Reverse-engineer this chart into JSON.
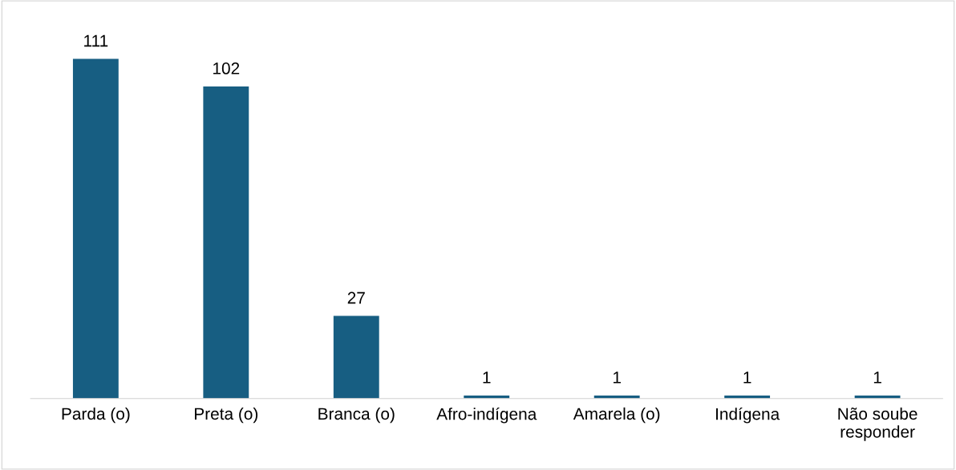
{
  "chart_data": {
    "type": "bar",
    "categories": [
      "Parda (o)",
      "Preta (o)",
      "Branca (o)",
      "Afro-indígena",
      "Amarela (o)",
      "Indígena",
      "Não soube\nresponder"
    ],
    "values": [
      111,
      102,
      27,
      1,
      1,
      1,
      1
    ],
    "color": "#175e82",
    "tick_labels": "x",
    "data_labels": true,
    "grid": false,
    "legend": false
  }
}
